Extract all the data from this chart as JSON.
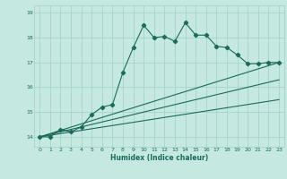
{
  "xlabel": "Humidex (Indice chaleur)",
  "bg_color": "#c5e8e0",
  "grid_color": "#9ecfc5",
  "line_color": "#1a6b5a",
  "xlim": [
    -0.5,
    23.5
  ],
  "ylim": [
    13.6,
    19.3
  ],
  "yticks": [
    14,
    15,
    16,
    17,
    18,
    19
  ],
  "xticks": [
    0,
    1,
    2,
    3,
    4,
    5,
    6,
    7,
    8,
    9,
    10,
    11,
    12,
    13,
    14,
    15,
    16,
    17,
    18,
    19,
    20,
    21,
    22,
    23
  ],
  "series1_x": [
    0,
    1,
    2,
    3,
    4,
    5,
    6,
    7,
    8,
    9,
    10,
    11,
    12,
    13,
    14,
    15,
    16,
    17,
    18,
    19,
    20,
    21,
    22,
    23
  ],
  "series1_y": [
    14.0,
    14.0,
    14.3,
    14.2,
    14.4,
    14.9,
    15.2,
    15.3,
    16.6,
    17.6,
    18.5,
    18.0,
    18.05,
    17.85,
    18.6,
    18.1,
    18.1,
    17.65,
    17.6,
    17.3,
    16.95,
    16.95,
    17.0,
    17.0
  ],
  "line2_x": [
    0,
    23
  ],
  "line2_y": [
    14.0,
    17.0
  ],
  "line3_x": [
    0,
    23
  ],
  "line3_y": [
    14.0,
    16.3
  ],
  "line4_x": [
    0,
    23
  ],
  "line4_y": [
    14.0,
    15.5
  ]
}
